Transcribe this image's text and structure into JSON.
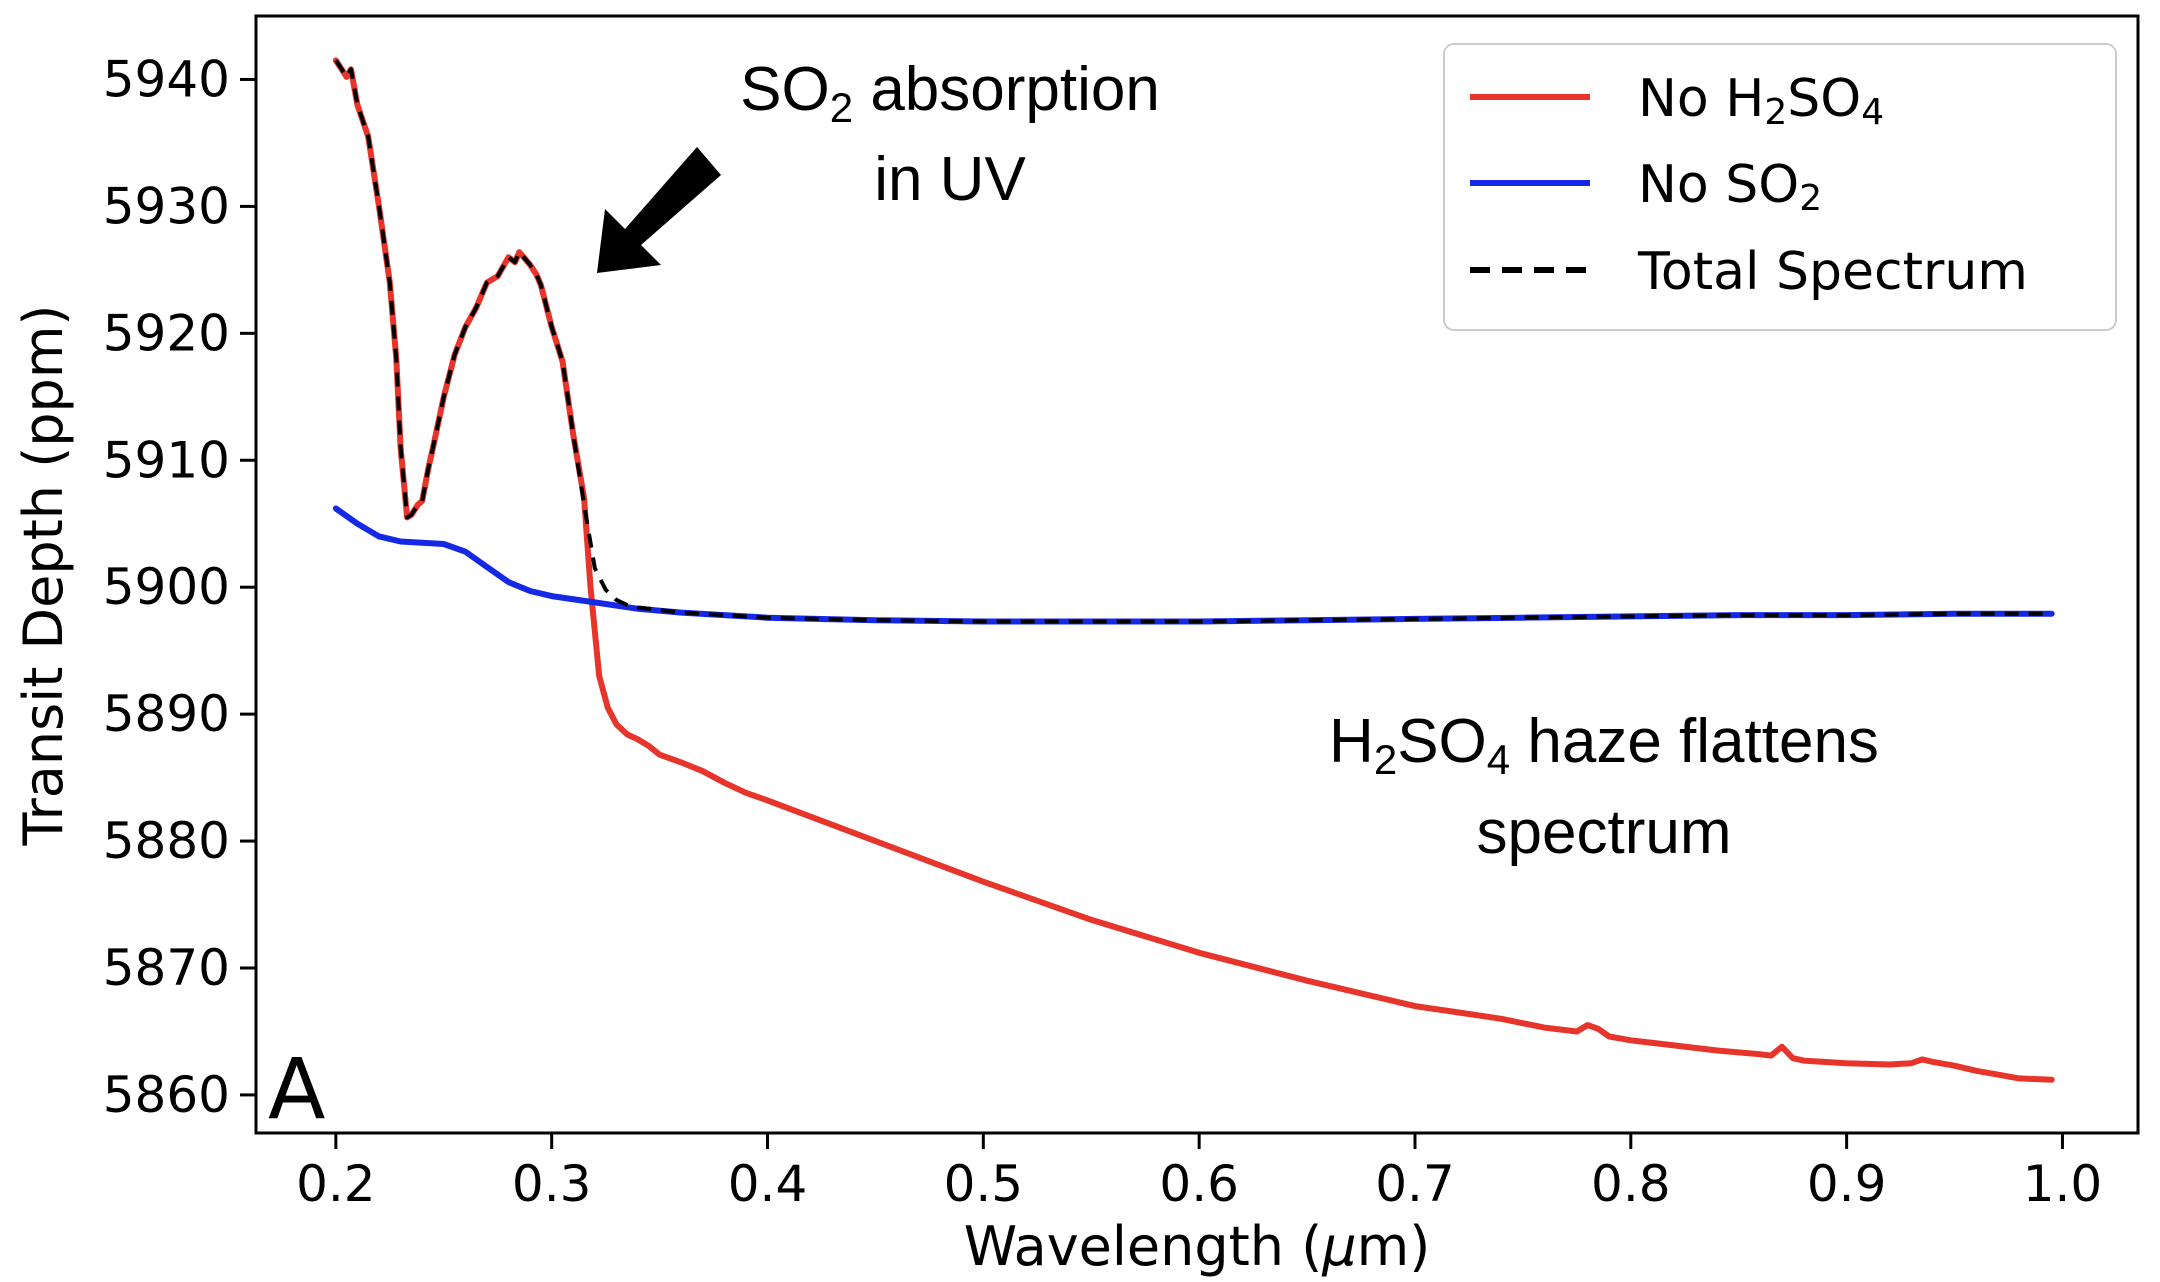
{
  "chart_data": {
    "type": "line",
    "title": "",
    "xlabel": "Wavelength (μm)",
    "ylabel": "Transit Depth (ppm)",
    "xlim": [
      0.163,
      1.035
    ],
    "ylim": [
      5857,
      5945
    ],
    "xticks": [
      0.2,
      0.3,
      0.4,
      0.5,
      0.6,
      0.7,
      0.8,
      0.9,
      1.0
    ],
    "xtick_labels": [
      "0.2",
      "0.3",
      "0.4",
      "0.5",
      "0.6",
      "0.7",
      "0.8",
      "0.9",
      "1.0"
    ],
    "yticks": [
      5860,
      5870,
      5880,
      5890,
      5900,
      5910,
      5920,
      5930,
      5940
    ],
    "ytick_labels": [
      "5860",
      "5870",
      "5880",
      "5890",
      "5900",
      "5910",
      "5920",
      "5930",
      "5940"
    ],
    "grid": false,
    "legend_position": "top-right",
    "series": [
      {
        "name": "No H₂SO₄",
        "color": "#e8352b",
        "style": "solid",
        "x": [
          0.2,
          0.205,
          0.207,
          0.21,
          0.215,
          0.22,
          0.225,
          0.228,
          0.23,
          0.233,
          0.235,
          0.238,
          0.24,
          0.243,
          0.245,
          0.25,
          0.255,
          0.26,
          0.265,
          0.27,
          0.275,
          0.28,
          0.283,
          0.285,
          0.288,
          0.29,
          0.293,
          0.295,
          0.3,
          0.305,
          0.31,
          0.315,
          0.318,
          0.322,
          0.326,
          0.33,
          0.335,
          0.34,
          0.345,
          0.35,
          0.36,
          0.37,
          0.38,
          0.39,
          0.4,
          0.45,
          0.5,
          0.55,
          0.6,
          0.65,
          0.7,
          0.72,
          0.74,
          0.76,
          0.775,
          0.78,
          0.785,
          0.79,
          0.8,
          0.82,
          0.84,
          0.86,
          0.865,
          0.87,
          0.875,
          0.88,
          0.9,
          0.92,
          0.93,
          0.935,
          0.94,
          0.95,
          0.96,
          0.97,
          0.98,
          0.995
        ],
        "values": [
          5941.5,
          5940.2,
          5940.8,
          5938,
          5935.5,
          5930,
          5924,
          5918,
          5911,
          5905.5,
          5905.7,
          5906.5,
          5906.8,
          5909.5,
          5911,
          5915,
          5918.3,
          5920.5,
          5922,
          5924,
          5924.5,
          5926,
          5925.6,
          5926.4,
          5925.8,
          5925.4,
          5924.6,
          5923.8,
          5920.5,
          5917.8,
          5912,
          5907,
          5900,
          5893,
          5890.5,
          5889.2,
          5888.4,
          5888,
          5887.5,
          5886.8,
          5886.2,
          5885.5,
          5884.6,
          5883.8,
          5883.2,
          5880,
          5876.8,
          5873.8,
          5871.2,
          5869,
          5867,
          5866.5,
          5866,
          5865.3,
          5865,
          5865.5,
          5865.2,
          5864.6,
          5864.3,
          5863.9,
          5863.5,
          5863.2,
          5863.1,
          5863.8,
          5862.9,
          5862.7,
          5862.5,
          5862.4,
          5862.5,
          5862.8,
          5862.6,
          5862.3,
          5861.9,
          5861.6,
          5861.3,
          5861.2
        ]
      },
      {
        "name": "No SO₂",
        "color": "#1428e6",
        "style": "solid",
        "x": [
          0.2,
          0.21,
          0.22,
          0.23,
          0.24,
          0.25,
          0.26,
          0.27,
          0.28,
          0.29,
          0.3,
          0.32,
          0.34,
          0.36,
          0.38,
          0.4,
          0.45,
          0.5,
          0.55,
          0.6,
          0.65,
          0.7,
          0.75,
          0.8,
          0.85,
          0.9,
          0.95,
          0.995
        ],
        "values": [
          5906.2,
          5905,
          5904,
          5903.6,
          5903.5,
          5903.4,
          5902.8,
          5901.6,
          5900.4,
          5899.7,
          5899.3,
          5898.8,
          5898.3,
          5898.0,
          5897.8,
          5897.6,
          5897.4,
          5897.3,
          5897.3,
          5897.3,
          5897.4,
          5897.5,
          5897.6,
          5897.7,
          5897.8,
          5897.8,
          5897.9,
          5897.9
        ]
      },
      {
        "name": "Total Spectrum",
        "color": "#000000",
        "style": "dashed",
        "x": [
          0.2,
          0.205,
          0.207,
          0.21,
          0.215,
          0.22,
          0.225,
          0.228,
          0.23,
          0.233,
          0.235,
          0.238,
          0.24,
          0.243,
          0.245,
          0.25,
          0.255,
          0.26,
          0.265,
          0.27,
          0.275,
          0.28,
          0.283,
          0.285,
          0.288,
          0.29,
          0.293,
          0.295,
          0.3,
          0.305,
          0.31,
          0.315,
          0.32,
          0.325,
          0.33,
          0.335,
          0.34,
          0.36,
          0.38,
          0.4,
          0.45,
          0.5,
          0.55,
          0.6,
          0.65,
          0.7,
          0.75,
          0.8,
          0.85,
          0.9,
          0.95,
          0.995
        ],
        "values": [
          5941.5,
          5940.2,
          5940.8,
          5938,
          5935.5,
          5930,
          5924,
          5918,
          5911,
          5905.5,
          5905.7,
          5906.5,
          5906.8,
          5909.5,
          5911,
          5915,
          5918.3,
          5920.5,
          5922,
          5924,
          5924.5,
          5926,
          5925.6,
          5926.4,
          5925.8,
          5925.4,
          5924.6,
          5923.8,
          5920.5,
          5917.8,
          5912,
          5906.5,
          5901.5,
          5899.8,
          5899,
          5898.6,
          5898.4,
          5898.0,
          5897.8,
          5897.6,
          5897.4,
          5897.3,
          5897.3,
          5897.3,
          5897.4,
          5897.5,
          5897.6,
          5897.7,
          5897.8,
          5897.8,
          5897.9,
          5897.9
        ]
      }
    ],
    "annotations": [
      {
        "text": "SO₂ absorption",
        "line": 1
      },
      {
        "text": "in UV",
        "line": 2
      },
      {
        "text": "H₂SO₄ haze flattens",
        "line": 1
      },
      {
        "text": "spectrum",
        "line": 2
      }
    ],
    "panel_label": "A"
  },
  "annotation_text": {
    "so2_line1_main": "SO",
    "so2_line1_sub": "2",
    "so2_line1_rest": " absorption",
    "so2_line2": "in UV",
    "haze_line1_h": "H",
    "haze_line1_sub1": "2",
    "haze_line1_so": "SO",
    "haze_line1_sub2": "4",
    "haze_line1_rest": " haze flattens",
    "haze_line2": "spectrum"
  },
  "legend_text": {
    "red_prefix": "No H",
    "red_sub1": "2",
    "red_mid": "SO",
    "red_sub2": "4",
    "blue_prefix": "No SO",
    "blue_sub": "2",
    "black_label": "Total Spectrum"
  },
  "axis_text": {
    "xlabel_prefix": "Wavelength (",
    "xlabel_mu": "μ",
    "xlabel_suffix": "m)",
    "ylabel": "Transit Depth (ppm)"
  }
}
